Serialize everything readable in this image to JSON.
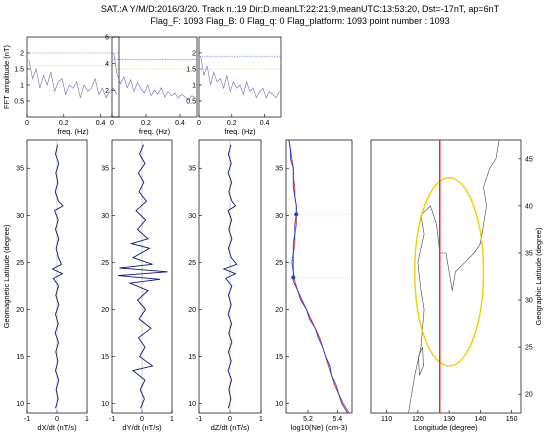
{
  "header": {
    "line1": "SAT.:A Y/M/D:2016/3/20. Track n.:19 Dir:D.meanLT:22:21:9,meanUTC:13:53:20, Dst=-17nT, ap=6nT",
    "line2": "Flag_F: 1093 Flag_B: 0 Flag_q: 0 Flag_platform: 1093 point number : 1093"
  },
  "chart_data": [
    {
      "type": "line",
      "id": "fft-x",
      "title": "",
      "xlabel": "freq. (Hz)",
      "ylabel": "FFT amplitude (nT)",
      "xlim": [
        0,
        0.5
      ],
      "ylim": [
        0,
        2.5
      ],
      "x_ticks": [
        0,
        0.2,
        0.4
      ],
      "y_ticks": [
        0.5,
        1,
        1.5,
        2
      ],
      "reference_lines": [
        {
          "y": 2.0,
          "color": "#5b7fd4"
        },
        {
          "y": 1.6,
          "color": "#e8c84a"
        }
      ],
      "series": [
        {
          "color": "#6a6fb0",
          "x": [
            0.01,
            0.03,
            0.05,
            0.07,
            0.09,
            0.11,
            0.13,
            0.15,
            0.17,
            0.19,
            0.21,
            0.23,
            0.25,
            0.27,
            0.29,
            0.31,
            0.33,
            0.35,
            0.37,
            0.39,
            0.41,
            0.43,
            0.45,
            0.47,
            0.49
          ],
          "y": [
            1.8,
            1.2,
            1.5,
            0.9,
            1.3,
            1.0,
            1.4,
            0.8,
            1.1,
            1.2,
            0.7,
            1.0,
            0.9,
            1.1,
            0.6,
            1.0,
            0.8,
            0.9,
            1.2,
            0.7,
            0.9,
            0.6,
            0.8,
            0.9,
            0.7
          ]
        }
      ]
    },
    {
      "type": "line",
      "id": "fft-y",
      "title": "",
      "xlabel": "freq. (Hz)",
      "ylabel": "",
      "xlim": [
        0,
        0.5
      ],
      "ylim": [
        0,
        6
      ],
      "x_ticks": [
        0,
        0.2,
        0.4
      ],
      "y_ticks": [
        2,
        4,
        6
      ],
      "reference_lines": [
        {
          "y": 4.3,
          "color": "#5b7fd4"
        },
        {
          "y": 3.6,
          "color": "#e8c84a"
        }
      ],
      "series": [
        {
          "color": "#6a6fb0",
          "x": [
            0.01,
            0.03,
            0.05,
            0.07,
            0.09,
            0.11,
            0.13,
            0.15,
            0.17,
            0.19,
            0.21,
            0.23,
            0.25,
            0.27,
            0.29,
            0.31,
            0.33,
            0.35,
            0.37,
            0.39,
            0.41,
            0.43,
            0.45,
            0.47,
            0.49
          ],
          "y": [
            4.8,
            3.2,
            2.5,
            3.0,
            2.2,
            2.8,
            1.9,
            2.6,
            2.1,
            1.8,
            2.4,
            1.6,
            2.0,
            1.7,
            2.2,
            1.5,
            1.9,
            1.6,
            1.8,
            1.4,
            1.7,
            1.5,
            1.3,
            1.6,
            1.4
          ]
        }
      ]
    },
    {
      "type": "line",
      "id": "fft-z",
      "title": "",
      "xlabel": "freq. (Hz)",
      "ylabel": "",
      "xlim": [
        0,
        0.5
      ],
      "ylim": [
        0,
        2.5
      ],
      "x_ticks": [
        0,
        0.2,
        0.4
      ],
      "y_ticks": [
        0.5,
        1,
        1.5,
        2
      ],
      "reference_lines": [
        {
          "y": 1.9,
          "color": "#5b7fd4"
        },
        {
          "y": 1.5,
          "color": "#e8c84a"
        }
      ],
      "series": [
        {
          "color": "#6a6fb0",
          "x": [
            0.01,
            0.03,
            0.05,
            0.07,
            0.09,
            0.11,
            0.13,
            0.15,
            0.17,
            0.19,
            0.21,
            0.23,
            0.25,
            0.27,
            0.29,
            0.31,
            0.33,
            0.35,
            0.37,
            0.39,
            0.41,
            0.43,
            0.45,
            0.47,
            0.49
          ],
          "y": [
            1.9,
            1.3,
            1.6,
            1.0,
            1.4,
            1.1,
            1.2,
            0.9,
            1.3,
            0.8,
            1.1,
            0.9,
            1.0,
            0.7,
            1.1,
            0.8,
            0.9,
            0.6,
            0.8,
            0.9,
            0.6,
            0.8,
            0.7,
            0.6,
            0.8
          ]
        }
      ]
    },
    {
      "type": "line",
      "id": "dxdt",
      "title": "",
      "xlabel": "dX/dt (nT/s)",
      "ylabel": "Geomagnetic Latitude (degree)",
      "xlim": [
        -1,
        1
      ],
      "ylim": [
        9,
        38
      ],
      "x_ticks": [
        -1,
        0,
        1
      ],
      "y_ticks": [
        10,
        15,
        20,
        25,
        30,
        35
      ],
      "series": [
        {
          "color": "#0b1a6b",
          "y": [
            37.5,
            36.5,
            35.5,
            34.5,
            33.5,
            32.5,
            31.5,
            31.0,
            30.5,
            29.5,
            28.5,
            27.5,
            26.5,
            25.5,
            24.8,
            24.3,
            23.8,
            23.3,
            22.5,
            21.5,
            20.5,
            19.5,
            18.5,
            17.5,
            16.5,
            15.5,
            14.5,
            13.5,
            12.5,
            11.5,
            10.5,
            9.5
          ],
          "x": [
            0.02,
            -0.05,
            0.06,
            -0.04,
            0.03,
            -0.06,
            0.05,
            0.2,
            -0.08,
            0.04,
            -0.05,
            0.06,
            -0.03,
            0.05,
            0.15,
            -0.15,
            0.18,
            -0.12,
            0.05,
            -0.04,
            0.06,
            -0.05,
            0.04,
            -0.06,
            0.05,
            -0.04,
            0.03,
            -0.05,
            0.06,
            -0.03,
            0.04,
            -0.05
          ]
        }
      ]
    },
    {
      "type": "line",
      "id": "dydt",
      "title": "",
      "xlabel": "dY/dt (nT/s)",
      "ylabel": "",
      "xlim": [
        -1,
        1
      ],
      "ylim": [
        9,
        38
      ],
      "x_ticks": [
        -1,
        0,
        1
      ],
      "y_ticks": [
        10,
        15,
        20,
        25,
        30,
        35
      ],
      "series": [
        {
          "color": "#0b1a6b",
          "y": [
            37.5,
            36.5,
            35.5,
            34.5,
            33.5,
            32.5,
            31.5,
            30.5,
            29.5,
            28.5,
            27.5,
            27.0,
            26.5,
            25.5,
            24.8,
            24.4,
            24.0,
            23.6,
            23.2,
            22.8,
            22.0,
            21.0,
            20.0,
            19.0,
            18.0,
            17.0,
            16.0,
            15.0,
            14.0,
            13.5,
            12.5,
            11.5,
            10.5,
            9.5
          ],
          "x": [
            0.05,
            -0.08,
            0.1,
            -0.12,
            0.06,
            -0.1,
            0.15,
            -0.2,
            0.12,
            -0.15,
            0.2,
            -0.35,
            0.25,
            -0.3,
            0.35,
            -0.75,
            0.85,
            -0.8,
            0.6,
            -0.4,
            0.2,
            -0.15,
            0.12,
            -0.1,
            0.3,
            -0.12,
            0.1,
            -0.08,
            0.35,
            -0.3,
            0.1,
            -0.06,
            0.08,
            -0.05
          ]
        }
      ]
    },
    {
      "type": "line",
      "id": "dzdt",
      "title": "",
      "xlabel": "dZ/dt (nT/s)",
      "ylabel": "",
      "xlim": [
        -1,
        1
      ],
      "ylim": [
        9,
        38
      ],
      "x_ticks": [
        -1,
        0,
        1
      ],
      "y_ticks": [
        10,
        15,
        20,
        25,
        30,
        35
      ],
      "series": [
        {
          "color": "#0b1a6b",
          "y": [
            37.5,
            36.5,
            35.5,
            34.5,
            33.5,
            32.5,
            31.5,
            31.0,
            30.5,
            29.5,
            28.5,
            27.5,
            26.5,
            25.5,
            24.8,
            24.3,
            23.8,
            23.3,
            22.5,
            21.5,
            20.5,
            19.5,
            18.5,
            17.5,
            16.5,
            15.5,
            14.5,
            13.5,
            12.5,
            11.5,
            10.5,
            9.5
          ],
          "x": [
            0.03,
            -0.05,
            0.04,
            -0.06,
            0.05,
            -0.04,
            0.06,
            0.18,
            -0.06,
            0.05,
            -0.04,
            0.06,
            -0.05,
            0.04,
            0.22,
            -0.2,
            0.18,
            -0.14,
            0.06,
            -0.05,
            0.04,
            -0.06,
            0.05,
            -0.04,
            0.06,
            -0.05,
            0.04,
            -0.06,
            0.05,
            -0.04,
            0.03,
            -0.05
          ]
        }
      ]
    },
    {
      "type": "line",
      "id": "ne",
      "title": "",
      "xlabel": "log10(Ne) (cm-3)",
      "ylabel": "",
      "xlim": [
        5.05,
        5.5
      ],
      "ylim": [
        9,
        38
      ],
      "x_ticks": [
        5.2,
        5.4
      ],
      "y_ticks": [
        10,
        15,
        20,
        25,
        30,
        35
      ],
      "markers": [
        {
          "x": 5.12,
          "y": 30.1,
          "color": "#1a3fd0"
        },
        {
          "x": 5.1,
          "y": 23.4,
          "color": "#1a3fd0"
        }
      ],
      "series": [
        {
          "color": "#d03030",
          "y": [
            38,
            37,
            36,
            35,
            34,
            33,
            32,
            31,
            30,
            29,
            28,
            27,
            26,
            25,
            24,
            23,
            22,
            21,
            20,
            19,
            18,
            17,
            16,
            15,
            14,
            13,
            12,
            11,
            10,
            9
          ],
          "x": [
            5.07,
            5.08,
            5.09,
            5.1,
            5.1,
            5.11,
            5.11,
            5.12,
            5.12,
            5.12,
            5.11,
            5.11,
            5.1,
            5.1,
            5.1,
            5.11,
            5.13,
            5.16,
            5.19,
            5.22,
            5.25,
            5.28,
            5.3,
            5.32,
            5.34,
            5.36,
            5.38,
            5.41,
            5.44,
            5.48
          ]
        },
        {
          "color": "#1a3fd0",
          "y": [
            38,
            37,
            36,
            35,
            34,
            33,
            32,
            31,
            30,
            29,
            28,
            27,
            26,
            25,
            24,
            23,
            22,
            21,
            20,
            19,
            18,
            17,
            16,
            15,
            14,
            13,
            12,
            11,
            10,
            9
          ],
          "x": [
            5.07,
            5.08,
            5.08,
            5.1,
            5.1,
            5.1,
            5.11,
            5.12,
            5.12,
            5.11,
            5.11,
            5.1,
            5.1,
            5.09,
            5.1,
            5.1,
            5.13,
            5.15,
            5.19,
            5.21,
            5.25,
            5.27,
            5.3,
            5.32,
            5.35,
            5.36,
            5.39,
            5.41,
            5.43,
            5.47
          ]
        }
      ]
    },
    {
      "type": "map",
      "id": "map",
      "title": "",
      "xlabel": "Longitude (degree)",
      "ylabel": "Geographic Latitude (degree)",
      "xlim": [
        105,
        153
      ],
      "ylim": [
        18,
        47
      ],
      "x_ticks": [
        110,
        120,
        130,
        140,
        150
      ],
      "y_ticks": [
        20,
        25,
        30,
        35,
        40,
        45
      ],
      "track": {
        "lon": 127,
        "color": "#e02020"
      },
      "ellipse": {
        "center_lon": 130,
        "center_lat": 33,
        "radius_lon": 11,
        "radius_lat": 10,
        "color": "#f0d000"
      }
    }
  ]
}
